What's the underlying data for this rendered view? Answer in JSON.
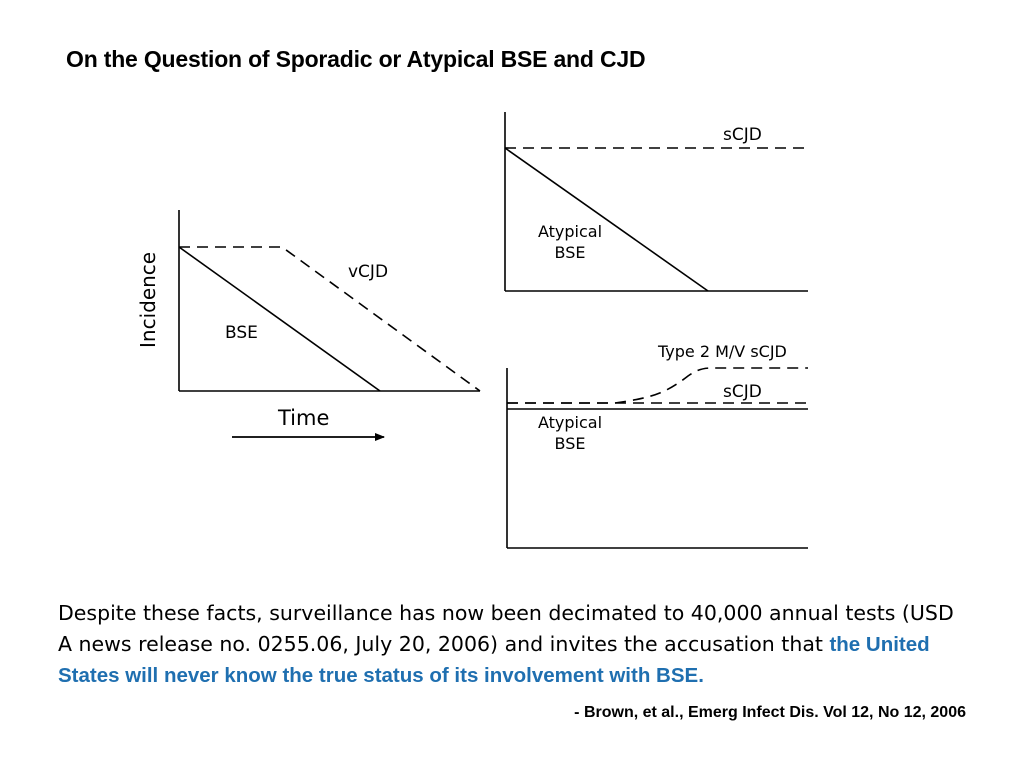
{
  "slide": {
    "title": "On the Question of Sporadic or Atypical BSE and CJD",
    "body_text": "Despite these facts, surveillance has now been decimated to 40,000 annual tests (USD A news release no. 0255.06, July 20, 2006) and invites the accusation that ",
    "body_highlight": "the United States will never know the true status of its involvement with BSE.",
    "citation": "- Brown, et al., Emerg Infect Dis. Vol 12, No 12, 2006",
    "highlight_color": "#1f6fb0"
  },
  "diagram": {
    "left_panel": {
      "y_axis_label": "Incidence",
      "x_axis_label": "Time",
      "solid_line_label": "BSE",
      "dashed_line_label": "vCJD"
    },
    "top_right_panel": {
      "dashed_line_label": "sCJD",
      "solid_line_label_line1": "Atypical",
      "solid_line_label_line2": "BSE"
    },
    "bottom_right_panel": {
      "rising_dashed_label": "Type 2 M/V sCJD",
      "dashed_line_label": "sCJD",
      "solid_line_label_line1": "Atypical",
      "solid_line_label_line2": "BSE"
    }
  }
}
